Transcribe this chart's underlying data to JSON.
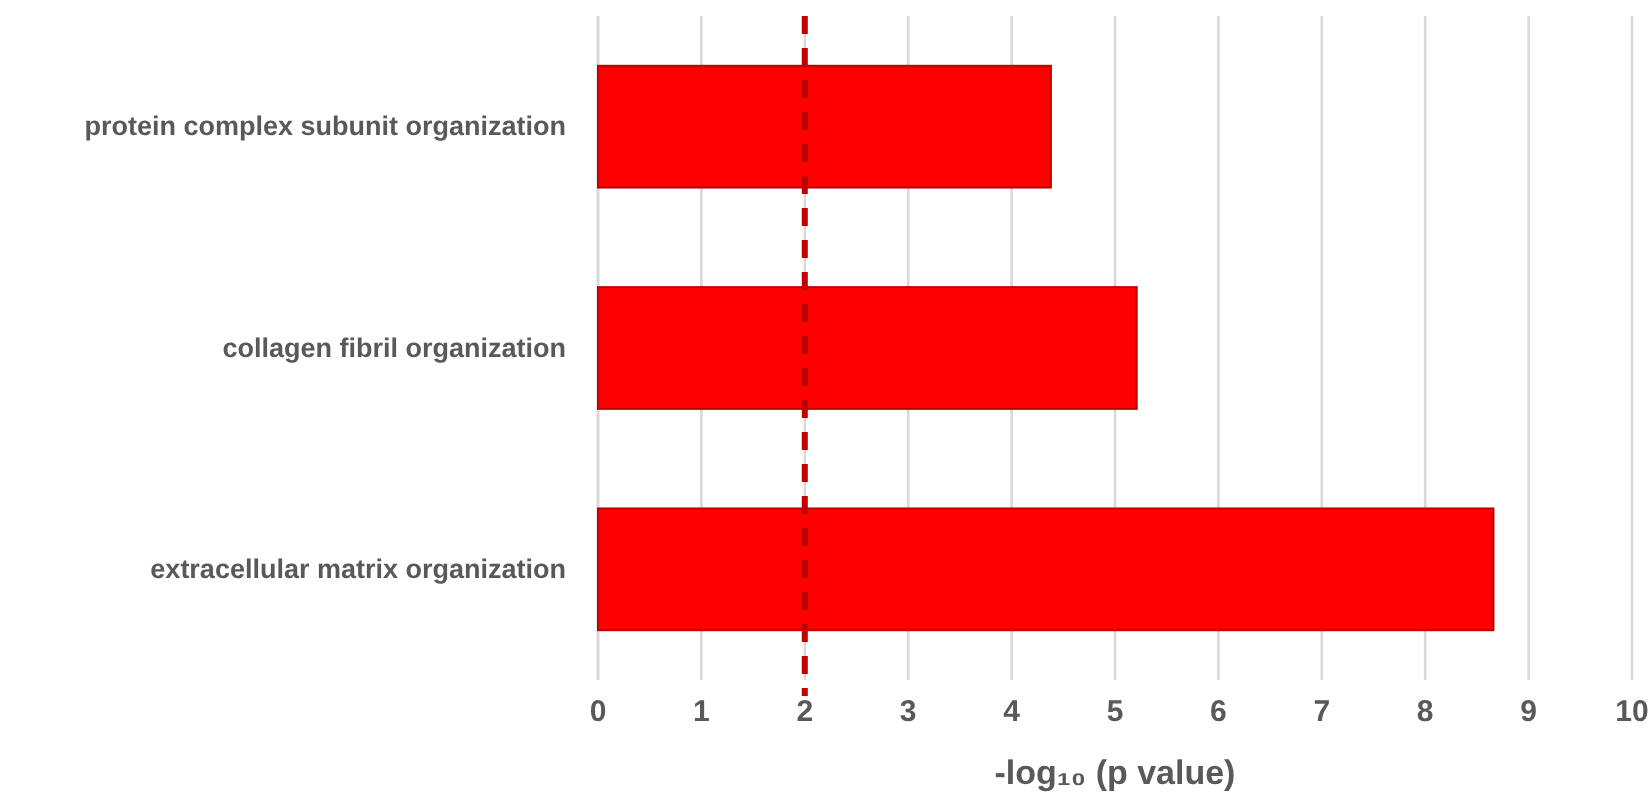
{
  "chart_data": {
    "type": "bar",
    "orientation": "horizontal",
    "xlabel": "-log₁₀ (p value)",
    "categories": [
      "protein complex subunit organization",
      "collagen fibril organization",
      "extracellular matrix organization"
    ],
    "values": [
      4.38,
      5.21,
      8.66
    ],
    "color": "#ff0000",
    "xlim": [
      0,
      10
    ],
    "xticks": [
      0,
      1,
      2,
      3,
      4,
      5,
      6,
      7,
      8,
      9,
      10
    ],
    "grid": "x",
    "ref_lines": [
      {
        "axis": "x",
        "value": 2,
        "color": "#c00000",
        "line_style": "dashed"
      }
    ]
  }
}
